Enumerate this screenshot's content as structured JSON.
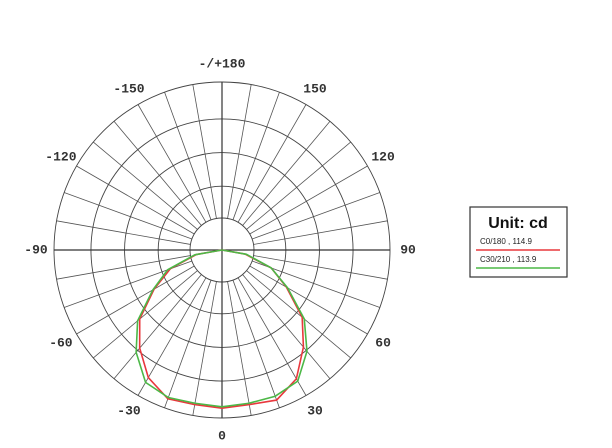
{
  "chart_data": {
    "type": "polar",
    "legend_title": "Unit: cd",
    "theta": [
      -90,
      -80,
      -70,
      -60,
      -50,
      -40,
      -30,
      -20,
      -10,
      0,
      10,
      20,
      30,
      40,
      50,
      60,
      70,
      80,
      90
    ],
    "rlim": [
      0,
      122
    ],
    "angle_ticks": [
      0,
      30,
      60,
      90,
      120,
      150,
      {
        "value": 180,
        "label": "-/+180"
      },
      -150,
      -120,
      -90,
      -60,
      -30
    ],
    "series": [
      {
        "name": "C0/180 , 114.9",
        "color": "#e8383d",
        "values": [
          0,
          19,
          40,
          57,
          78,
          93,
          107,
          115,
          114,
          114.9,
          114,
          116,
          108,
          92,
          76,
          54,
          38,
          17,
          0
        ]
      },
      {
        "name": "C30/210 , 113.9",
        "color": "#4cb847",
        "values": [
          0,
          20,
          42,
          58,
          80,
          97,
          111,
          114,
          113,
          113.9,
          113,
          113,
          110,
          96,
          78,
          55,
          38,
          18,
          0
        ]
      }
    ]
  }
}
